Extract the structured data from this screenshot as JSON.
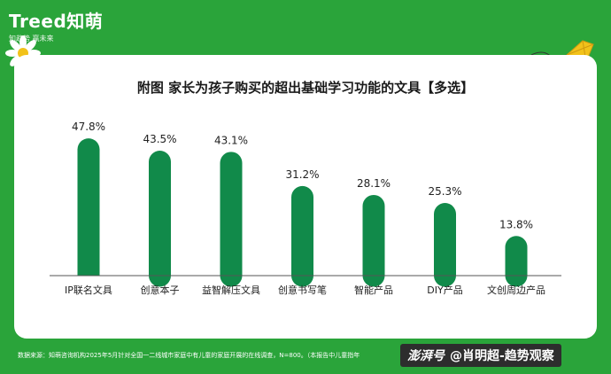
{
  "brand": {
    "logo": "Treed知萌",
    "tagline": "知趋势  赢未来"
  },
  "footer": {
    "source": "数据来源：知萌咨询机构2025年5月针对全国一二线城市家庭中有儿童的家庭开展的在线调查，N=800。（本报告中儿童指年"
  },
  "watermark": {
    "brand": "澎湃号",
    "author": "@肖明超-趋势观察"
  },
  "colors": {
    "background": "#2aa43a",
    "bar": "#118a4a"
  },
  "chart_data": {
    "type": "bar",
    "title": "附图 家长为孩子购买的超出基础学习功能的文具【多选】",
    "categories": [
      "IP联名文具",
      "创意本子",
      "益智解压文具",
      "创意书写笔",
      "智能产品",
      "DIY产品",
      "文创周边产品"
    ],
    "values": [
      47.8,
      43.5,
      43.1,
      31.2,
      28.1,
      25.3,
      13.8
    ],
    "value_labels": [
      "47.8%",
      "43.5%",
      "43.1%",
      "31.2%",
      "28.1%",
      "25.3%",
      "13.8%"
    ],
    "ylim": [
      0,
      50
    ],
    "grid": false,
    "legend": "none"
  }
}
